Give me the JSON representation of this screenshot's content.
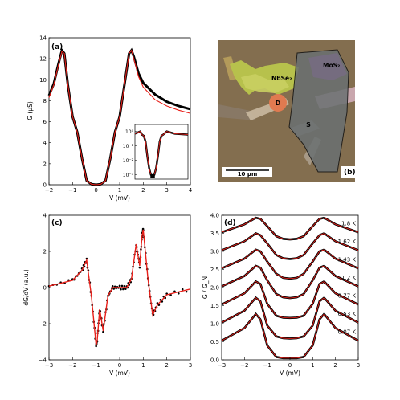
{
  "panels": {
    "a": {
      "label": "(a)",
      "xlabel": "V (mV)",
      "ylabel": "G (μS)",
      "xticks": [
        "−2",
        "−1",
        "0",
        "1",
        "2",
        "3",
        "4"
      ],
      "yticks": [
        "0",
        "2",
        "4",
        "6",
        "8",
        "10",
        "12",
        "14"
      ]
    },
    "inset": {
      "yticks": [
        "10⁻³",
        "10⁻²",
        "10⁻¹",
        "10⁰"
      ]
    },
    "b": {
      "label": "(b)",
      "material1": "NbSe₂",
      "material2": "MoS₂",
      "electrode_d": "D",
      "electrode_s": "S",
      "scalebar": "10 μm"
    },
    "c": {
      "label": "(c)",
      "xlabel": "V (mV)",
      "ylabel": "dG/dV (a.u.)",
      "xticks": [
        "−3",
        "−2",
        "−1",
        "0",
        "1",
        "2",
        "3"
      ],
      "yticks": [
        "−4",
        "−2",
        "0",
        "2",
        "4"
      ]
    },
    "d": {
      "label": "(d)",
      "xlabel": "V (mV)",
      "ylabel": "G / G_N",
      "xticks": [
        "−3",
        "−2",
        "−1",
        "0",
        "1",
        "2",
        "3"
      ],
      "yticks": [
        "0.0",
        "0.5",
        "1.0",
        "1.5",
        "2.0",
        "2.5",
        "3.0",
        "3.5",
        "4.0"
      ],
      "temperatures": [
        "1.8 K",
        "1.62 K",
        "1.43 K",
        "1.2 K",
        "0.77 K",
        "0.53 K",
        "0.07 K"
      ]
    }
  },
  "colors": {
    "data": "#000000",
    "fit": "#e8201a",
    "photo_bg": "#7e6c4c"
  },
  "chart_data": [
    {
      "type": "line",
      "panel": "a",
      "xlabel": "V (mV)",
      "ylabel": "G (μS)",
      "xlim": [
        -2,
        4
      ],
      "ylim": [
        0,
        14
      ],
      "x": [
        -2.0,
        -1.8,
        -1.6,
        -1.45,
        -1.35,
        -1.2,
        -1.0,
        -0.8,
        -0.6,
        -0.4,
        -0.2,
        0.0,
        0.2,
        0.4,
        0.6,
        0.8,
        1.0,
        1.2,
        1.4,
        1.5,
        1.6,
        1.8,
        2.0,
        2.5,
        3.0,
        3.5,
        4.0
      ],
      "series": [
        {
          "values": [
            8.5,
            9.6,
            11.5,
            12.8,
            12.5,
            9.5,
            6.5,
            5.0,
            2.5,
            0.4,
            0.05,
            0.0,
            0.05,
            0.4,
            2.5,
            5.0,
            6.5,
            9.5,
            12.5,
            12.8,
            12.2,
            10.6,
            9.7,
            8.6,
            7.9,
            7.5,
            7.2
          ]
        },
        {
          "values": [
            8.3,
            9.5,
            11.4,
            12.7,
            12.5,
            9.5,
            6.5,
            5.0,
            2.5,
            0.4,
            0.05,
            0.0,
            0.05,
            0.4,
            2.5,
            5.0,
            6.5,
            9.5,
            12.5,
            12.8,
            12.0,
            10.3,
            9.3,
            8.1,
            7.5,
            7.1,
            6.8
          ]
        }
      ]
    },
    {
      "type": "line",
      "panel": "a-inset",
      "yscale": "log",
      "xlim": [
        -2,
        4
      ],
      "ylim": [
        0.0005,
        3
      ],
      "x": [
        -2.0,
        -1.4,
        -1.2,
        -1.0,
        -0.8,
        -0.6,
        -0.4,
        -0.2,
        0.0,
        0.2,
        0.4,
        0.6,
        0.8,
        1.0,
        1.2,
        1.6,
        2.5,
        4.0
      ],
      "series": [
        {
          "values": [
            0.7,
            1.0,
            0.6,
            0.5,
            0.2,
            0.02,
            0.003,
            0.001,
            0.0008,
            0.001,
            0.003,
            0.02,
            0.2,
            0.5,
            0.6,
            1.0,
            0.7,
            0.6
          ]
        }
      ]
    },
    {
      "type": "line",
      "panel": "c",
      "xlabel": "V (mV)",
      "ylabel": "dG/dV (a.u.)",
      "xlim": [
        -3,
        3
      ],
      "ylim": [
        -5,
        5
      ],
      "x": [
        -3.0,
        -2.0,
        -1.6,
        -1.4,
        -1.2,
        -1.0,
        -0.95,
        -0.85,
        -0.7,
        -0.5,
        -0.3,
        0.0,
        0.3,
        0.5,
        0.7,
        0.85,
        0.95,
        1.0,
        1.2,
        1.4,
        1.6,
        2.0,
        3.0
      ],
      "series": [
        {
          "values": [
            0.1,
            0.5,
            1.2,
            1.9,
            -0.6,
            -4.0,
            -3.6,
            -1.5,
            -3.0,
            -0.6,
            0.0,
            0.0,
            0.0,
            0.6,
            3.0,
            1.5,
            3.6,
            4.0,
            0.6,
            -1.9,
            -1.2,
            -0.5,
            -0.1
          ]
        }
      ]
    },
    {
      "type": "line",
      "panel": "d",
      "xlabel": "V (mV)",
      "ylabel": "G / G_N",
      "xlim": [
        -3,
        3
      ],
      "ylim": [
        0,
        4
      ],
      "x": [
        -3.0,
        -2.0,
        -1.5,
        -1.3,
        -1.0,
        -0.6,
        -0.3,
        0.0,
        0.3,
        0.6,
        1.0,
        1.3,
        1.5,
        2.0,
        3.0
      ],
      "series": [
        {
          "name": "1.8 K",
          "values": [
            3.53,
            3.75,
            3.93,
            3.9,
            3.7,
            3.42,
            3.35,
            3.33,
            3.35,
            3.42,
            3.7,
            3.9,
            3.93,
            3.75,
            3.53
          ]
        },
        {
          "name": "1.62 K",
          "values": [
            3.03,
            3.28,
            3.5,
            3.45,
            3.22,
            2.9,
            2.81,
            2.79,
            2.81,
            2.9,
            3.22,
            3.45,
            3.5,
            3.28,
            3.03
          ]
        },
        {
          "name": "1.43 K",
          "values": [
            2.53,
            2.8,
            3.05,
            3.0,
            2.72,
            2.38,
            2.27,
            2.25,
            2.27,
            2.38,
            2.72,
            3.0,
            3.05,
            2.8,
            2.53
          ]
        },
        {
          "name": "1.2 K",
          "values": [
            2.03,
            2.32,
            2.6,
            2.55,
            2.2,
            1.82,
            1.73,
            1.71,
            1.73,
            1.82,
            2.2,
            2.55,
            2.6,
            2.32,
            2.03
          ]
        },
        {
          "name": "0.77 K",
          "values": [
            1.53,
            1.84,
            2.17,
            2.1,
            1.55,
            1.22,
            1.17,
            1.16,
            1.17,
            1.22,
            1.55,
            2.1,
            2.17,
            1.84,
            1.53
          ]
        },
        {
          "name": "0.53 K",
          "values": [
            1.03,
            1.36,
            1.72,
            1.62,
            0.95,
            0.65,
            0.6,
            0.59,
            0.6,
            0.65,
            0.95,
            1.62,
            1.72,
            1.36,
            1.03
          ]
        },
        {
          "name": "0.07 K",
          "values": [
            0.53,
            0.88,
            1.27,
            1.12,
            0.4,
            0.08,
            0.05,
            0.05,
            0.05,
            0.08,
            0.4,
            1.12,
            1.27,
            0.88,
            0.53
          ]
        }
      ]
    }
  ]
}
